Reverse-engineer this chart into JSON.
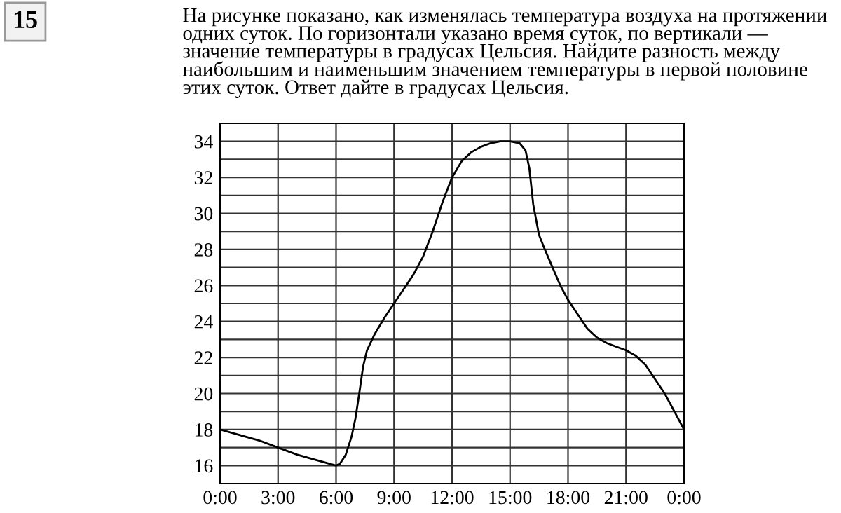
{
  "chart_data": {
    "type": "line",
    "title": "На рисунке показано, как изменялась температура воздуха на протяжении одних суток. По горизонтали указано время суток, по вертикали — значение температуры в градусах Цельсия. Найдите разность между наибольшим и наименьшим значением температуры в первой половине этих суток. Ответ дайте в градусах Цельсия.",
    "annotations": [
      "15"
    ],
    "x": [
      0,
      1,
      2,
      3,
      4,
      5,
      6,
      6.2,
      6.5,
      6.8,
      7,
      7.2,
      7.4,
      7.6,
      8,
      8.5,
      9,
      9.5,
      10,
      10.5,
      11,
      11.5,
      12,
      12.5,
      13,
      13.5,
      14,
      14.5,
      15,
      15.5,
      15.8,
      16,
      16.2,
      16.5,
      16.8,
      17.2,
      17.6,
      18,
      18.5,
      19,
      19.5,
      20,
      20.5,
      21,
      21.5,
      22,
      22.5,
      23,
      23.5,
      24
    ],
    "series": [
      {
        "color": "#000000",
        "values": [
          18,
          17.7,
          17.4,
          17,
          16.6,
          16.3,
          16,
          16.1,
          16.6,
          17.6,
          18.6,
          20,
          21.5,
          22.4,
          23.3,
          24.2,
          25,
          25.8,
          26.6,
          27.6,
          29,
          30.6,
          32,
          32.9,
          33.4,
          33.7,
          33.9,
          34,
          34,
          33.9,
          33.5,
          32.5,
          30.5,
          28.8,
          28,
          27,
          26,
          25.2,
          24.4,
          23.6,
          23.1,
          22.8,
          22.6,
          22.4,
          22.1,
          21.6,
          20.8,
          20,
          19,
          18
        ]
      }
    ],
    "xlim": [
      0,
      24
    ],
    "ylim": [
      15,
      35
    ],
    "xticks": [
      {
        "value": 0,
        "label": "0:00"
      },
      {
        "value": 3,
        "label": "3:00"
      },
      {
        "value": 6,
        "label": "6:00"
      },
      {
        "value": 9,
        "label": "9:00"
      },
      {
        "value": 12,
        "label": "12:00"
      },
      {
        "value": 15,
        "label": "15:00"
      },
      {
        "value": 18,
        "label": "18:00"
      },
      {
        "value": 21,
        "label": "21:00"
      },
      {
        "value": 24,
        "label": "0:00"
      }
    ],
    "yticks": [
      {
        "value": 15,
        "label": null
      },
      16,
      {
        "value": 17,
        "label": null
      },
      18,
      {
        "value": 19,
        "label": null
      },
      20,
      {
        "value": 21,
        "label": null
      },
      22,
      {
        "value": 23,
        "label": null
      },
      24,
      {
        "value": 25,
        "label": null
      },
      26,
      {
        "value": 27,
        "label": null
      },
      28,
      {
        "value": 29,
        "label": null
      },
      30,
      {
        "value": 31,
        "label": null
      },
      32,
      {
        "value": 33,
        "label": null
      },
      34,
      {
        "value": 35,
        "label": null
      }
    ],
    "grid": true,
    "marker": "none",
    "line_style": "solid"
  }
}
